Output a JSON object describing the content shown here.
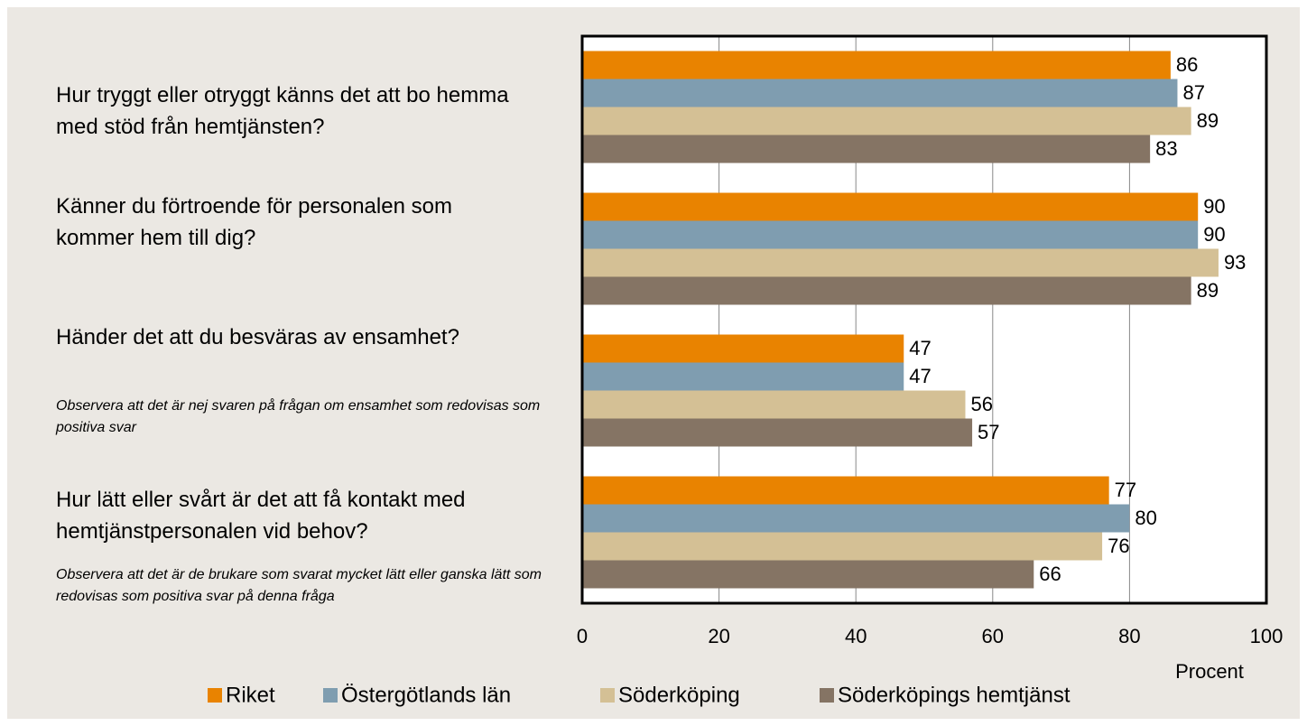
{
  "chart_data": {
    "type": "barh",
    "categories": [
      "Hur tryggt eller otryggt känns det att bo hemma med stöd från hemtjänsten?",
      "Känner du förtroende för personalen som kommer hem till dig?",
      "Händer det att du besväras av ensamhet?",
      "Hur lätt eller svårt är det att få kontakt med hemtjänstpersonalen vid behov?"
    ],
    "annotations": [
      "Observera att det är nej svaren på frågan om ensamhet som redovisas som positiva svar",
      "Observera att det är de brukare som svarat mycket lätt eller ganska lätt som redovisas som positiva svar på denna fråga"
    ],
    "series": [
      {
        "name": "Riket",
        "color": "#e98300",
        "values": [
          86,
          90,
          47,
          77
        ]
      },
      {
        "name": "Östergötlands län",
        "color": "#7f9db0",
        "values": [
          87,
          90,
          47,
          80
        ]
      },
      {
        "name": "Söderköping",
        "color": "#d4c095",
        "values": [
          89,
          93,
          56,
          76
        ]
      },
      {
        "name": "Söderköpings hemtjänst",
        "color": "#857464",
        "values": [
          83,
          89,
          57,
          66
        ]
      }
    ],
    "xlabel": "Procent",
    "xlim": [
      0,
      100
    ],
    "xticks": [
      0,
      20,
      40,
      60,
      80,
      100
    ],
    "grid": true,
    "legend": "bottom"
  }
}
